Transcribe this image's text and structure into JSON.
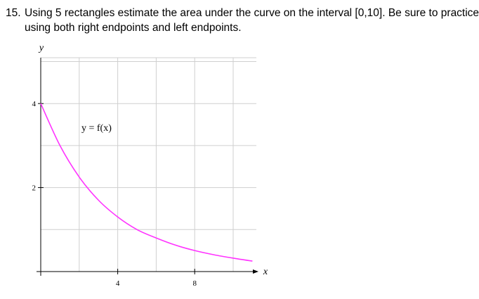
{
  "problem": {
    "number": "15.",
    "line1": "Using 5 rectangles estimate the area under the curve on the interval [0,10].  Be sure to practice",
    "line2": "using both right endpoints and left endpoints."
  },
  "graph": {
    "y_axis_label": "y",
    "x_axis_label": "x",
    "function_label": "y = f(x)",
    "x_tick_labels": [
      "4",
      "8"
    ],
    "y_tick_labels": [
      "2",
      "4"
    ],
    "curve_color": "#ff33ff"
  },
  "chart_data": {
    "type": "line",
    "title": "",
    "xlabel": "x",
    "ylabel": "y",
    "xlim": [
      0,
      11
    ],
    "ylim": [
      -0.2,
      5
    ],
    "x_ticks": [
      4,
      8
    ],
    "y_ticks": [
      2,
      4
    ],
    "grid": true,
    "series": [
      {
        "name": "y = f(x)",
        "x": [
          0,
          1,
          2,
          3,
          4,
          5,
          6,
          7,
          8,
          9,
          10,
          11
        ],
        "y": [
          4.0,
          3.0,
          2.25,
          1.7,
          1.3,
          1.0,
          0.8,
          0.63,
          0.5,
          0.4,
          0.32,
          0.25
        ]
      }
    ]
  }
}
